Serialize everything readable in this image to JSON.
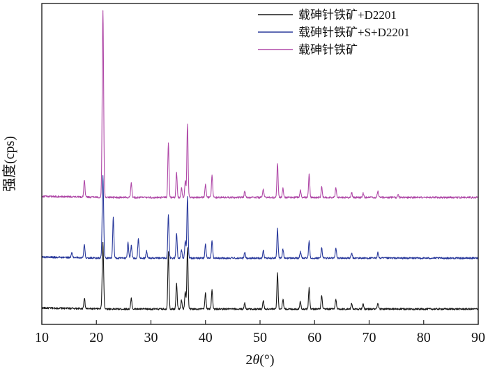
{
  "chart_data": {
    "type": "line",
    "title": "",
    "xlabel": "2θ(°)",
    "xlabel_parts": {
      "pre": "2",
      "theta": "θ",
      "post": "(°)"
    },
    "ylabel": "强度(cps)",
    "xlim": [
      10,
      90
    ],
    "x_ticks": [
      10,
      20,
      30,
      40,
      50,
      60,
      70,
      80,
      90
    ],
    "x_tick_labels": [
      "10",
      "20",
      "30",
      "40",
      "50",
      "60",
      "70",
      "80",
      "90"
    ],
    "y_ticks_shown": false,
    "grid": false,
    "legend_position": "top-right",
    "series": [
      {
        "name": "载砷针铁矿+D2201",
        "color": "#1a1a1a",
        "peaks": [
          [
            17.8,
            15
          ],
          [
            21.2,
            95
          ],
          [
            26.4,
            15
          ],
          [
            33.2,
            82
          ],
          [
            34.7,
            36
          ],
          [
            35.6,
            13
          ],
          [
            36.3,
            25
          ],
          [
            36.7,
            88
          ],
          [
            40.0,
            23
          ],
          [
            41.2,
            28
          ],
          [
            47.2,
            9
          ],
          [
            50.6,
            12
          ],
          [
            53.2,
            52
          ],
          [
            54.2,
            14
          ],
          [
            57.4,
            11
          ],
          [
            59.0,
            30
          ],
          [
            61.3,
            19
          ],
          [
            63.9,
            14
          ],
          [
            66.8,
            8
          ],
          [
            68.9,
            7
          ],
          [
            71.6,
            8
          ]
        ]
      },
      {
        "name": "载砷针铁矿+S+D2201",
        "color": "#2a3a9c",
        "peaks": [
          [
            15.5,
            7
          ],
          [
            17.8,
            19
          ],
          [
            21.2,
            118
          ],
          [
            23.1,
            58
          ],
          [
            25.8,
            23
          ],
          [
            26.4,
            18
          ],
          [
            27.7,
            28
          ],
          [
            29.2,
            10
          ],
          [
            33.2,
            62
          ],
          [
            34.7,
            35
          ],
          [
            35.6,
            12
          ],
          [
            36.3,
            25
          ],
          [
            36.7,
            88
          ],
          [
            40.0,
            20
          ],
          [
            41.2,
            25
          ],
          [
            47.2,
            8
          ],
          [
            50.6,
            11
          ],
          [
            53.2,
            42
          ],
          [
            54.2,
            13
          ],
          [
            57.4,
            9
          ],
          [
            59.0,
            25
          ],
          [
            61.3,
            15
          ],
          [
            63.9,
            14
          ],
          [
            66.8,
            7
          ],
          [
            71.6,
            8
          ]
        ]
      },
      {
        "name": "载砷针铁矿",
        "color": "#b04aa8",
        "peaks": [
          [
            17.8,
            24
          ],
          [
            21.2,
            267
          ],
          [
            26.4,
            21
          ],
          [
            33.2,
            78
          ],
          [
            34.7,
            35
          ],
          [
            35.6,
            13
          ],
          [
            36.3,
            24
          ],
          [
            36.7,
            105
          ],
          [
            40.0,
            19
          ],
          [
            41.2,
            32
          ],
          [
            47.2,
            9
          ],
          [
            50.6,
            12
          ],
          [
            53.2,
            48
          ],
          [
            54.2,
            13
          ],
          [
            57.4,
            10
          ],
          [
            59.0,
            33
          ],
          [
            61.3,
            15
          ],
          [
            63.9,
            14
          ],
          [
            66.8,
            7
          ],
          [
            68.9,
            6
          ],
          [
            71.6,
            9
          ],
          [
            75.3,
            4
          ]
        ]
      }
    ]
  }
}
